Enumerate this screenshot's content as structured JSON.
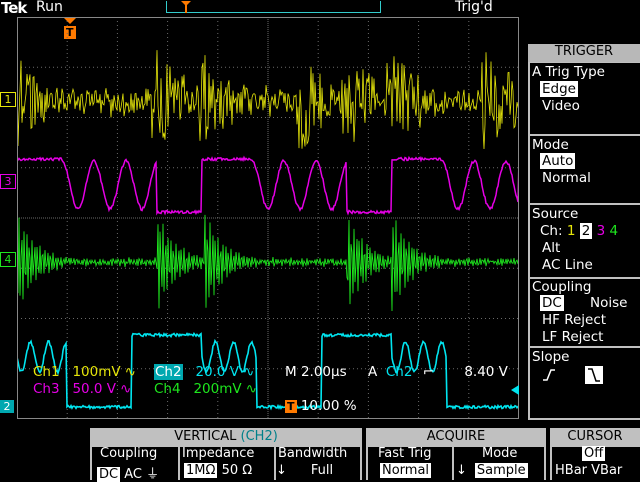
{
  "colors": {
    "ch1": "#e6e60a",
    "ch2": "#00e5f0",
    "ch3": "#e600e6",
    "ch4": "#1ee61e",
    "accent": "#ff7a00",
    "grid": "#6a6a6a"
  },
  "top": {
    "brand": "Tek",
    "run_state": "Run",
    "trigger_state": "Trig'd"
  },
  "channels": {
    "ch1_marker": "1",
    "ch2_marker": "2",
    "ch3_marker": "3",
    "ch4_marker": "4",
    "trigger_marker": "T"
  },
  "readout": {
    "ch1_label": "Ch1",
    "ch1_scale": "100mV",
    "ch2_label": "Ch2",
    "ch2_scale": "20.0 V",
    "ch3_label": "Ch3",
    "ch3_scale": "50.0 V",
    "ch4_label": "Ch4",
    "ch4_scale": "200mV",
    "timebase": "M 2.00µs",
    "trig_src_prefix": "A",
    "trig_src": "Ch2",
    "trig_level": "8.40 V",
    "trig_position": "10.00 %"
  },
  "trigger_menu": {
    "title": "TRIGGER",
    "type_label": "A Trig Type",
    "type_options": [
      "Edge",
      "Video"
    ],
    "type_selected": "Edge",
    "mode_label": "Mode",
    "mode_options": [
      "Auto",
      "Normal"
    ],
    "mode_selected": "Auto",
    "source_label": "Source",
    "source_prefix": "Ch:",
    "source_channels": [
      "1",
      "2",
      "3",
      "4"
    ],
    "source_selected": "2",
    "source_alt": "Alt",
    "source_acline": "AC Line",
    "coupling_label": "Coupling",
    "coupling_options": [
      "DC",
      "Noise",
      "HF Reject",
      "LF Reject"
    ],
    "coupling_selected": "DC",
    "slope_label": "Slope"
  },
  "bottom_menu": {
    "vertical_title": "VERTICAL",
    "vertical_channel": "(CH2)",
    "coupling_label": "Coupling",
    "coupling_dc": "DC",
    "coupling_ac": "AC",
    "impedance_label": "Impedance",
    "impedance_1m": "1MΩ",
    "impedance_50": "50 Ω",
    "bandwidth_label": "Bandwidth",
    "bandwidth_value": "Full",
    "acquire_title": "ACQUIRE",
    "fasttrig_label": "Fast Trig",
    "fasttrig_value": "Normal",
    "mode_label": "Mode",
    "mode_value": "Sample",
    "cursor_title": "CURSOR",
    "cursor_off": "Off",
    "cursor_hbar": "HBar",
    "cursor_vbar": "VBar"
  }
}
